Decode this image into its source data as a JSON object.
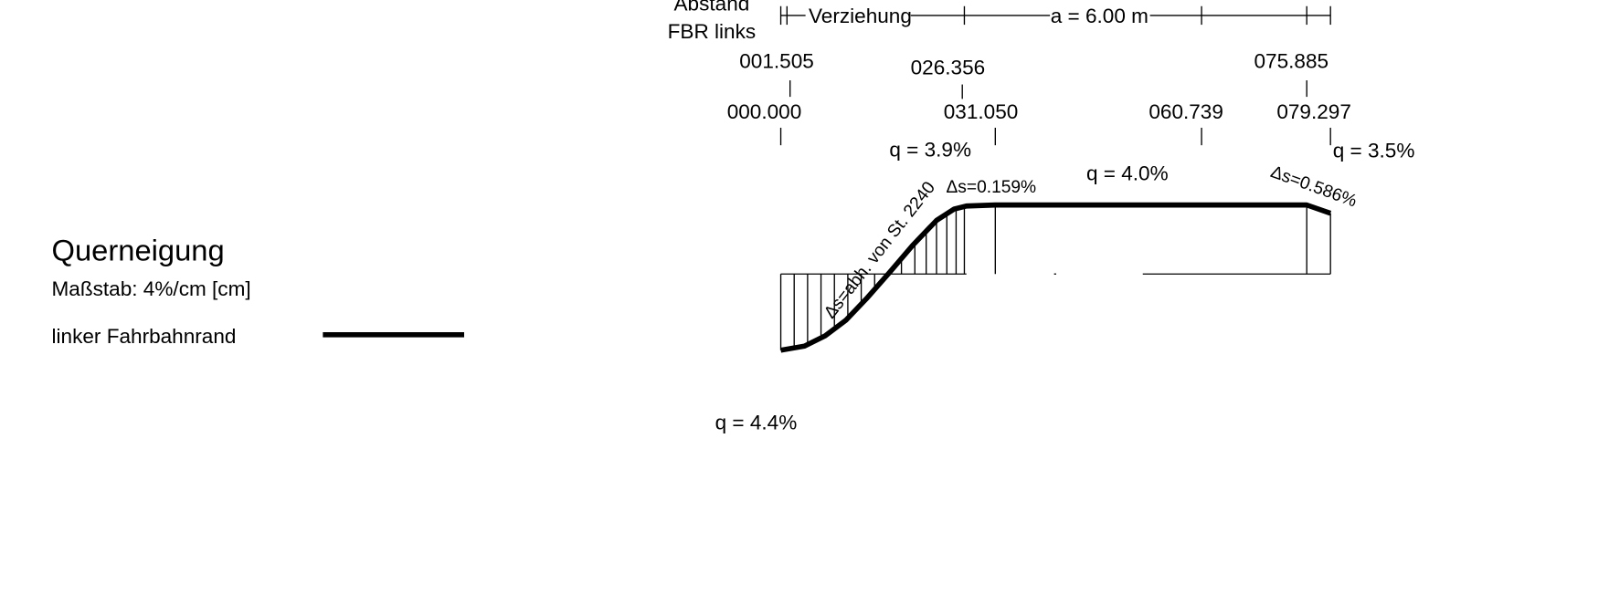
{
  "header": {
    "distance_label": "Abstand",
    "edge_label": "FBR links"
  },
  "dimension_line": {
    "transition": "Verziehung",
    "spacing": "a = 6.00 m"
  },
  "stations_upper": [
    "001.505",
    "026.356",
    "075.885"
  ],
  "stations_lower": [
    "000.000",
    "031.050",
    "060.739",
    "079.297"
  ],
  "slopes": [
    "q = 3.9%",
    "q = 4.0%",
    "q = 3.5%",
    "q = 4.4%"
  ],
  "annotations": {
    "delta_left": "Δs=0.159%",
    "delta_right": "Δs=0.586%",
    "delta_ramp": "Δs=abh. von St. 2240"
  },
  "legend": {
    "title": "Querneigung",
    "scale": "Maßstab: 4%/cm [cm]",
    "line_label": "linker Fahrbahnrand"
  }
}
